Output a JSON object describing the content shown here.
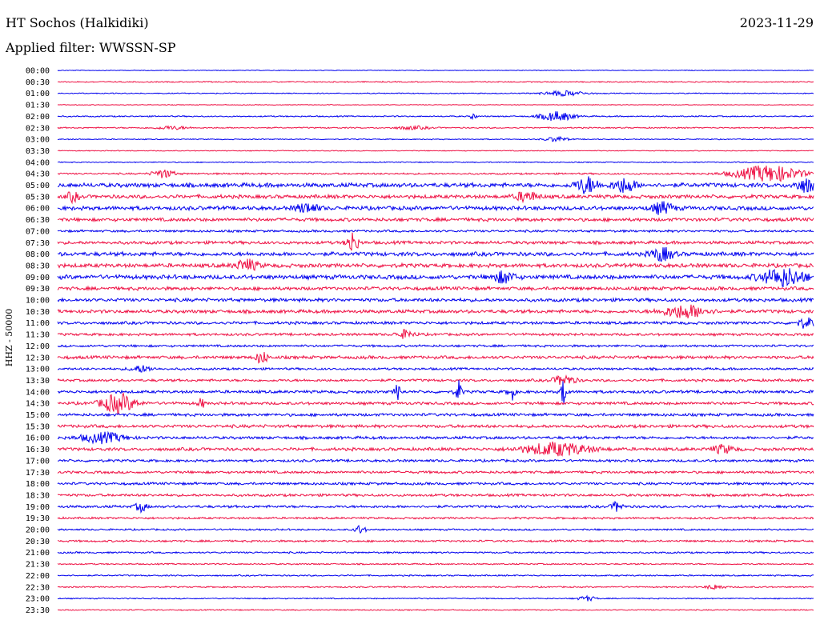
{
  "header": {
    "station": "HT Sochos (Halkidiki)",
    "date": "2023-11-29",
    "filter": "Applied filter: WWSSN-SP",
    "channel_label": "HHZ - 50000"
  },
  "colors": {
    "even_rows": "#0000ee",
    "odd_rows": "#ee1144"
  },
  "chart_data": {
    "type": "line",
    "title": "HT Sochos (Halkidiki)",
    "subtitle": "Applied filter: WWSSN-SP",
    "ylabel": "HHZ - 50000",
    "xlabel": "",
    "grid": false,
    "legend": "none",
    "categories": [
      "00:00",
      "00:30",
      "01:00",
      "01:30",
      "02:00",
      "02:30",
      "03:00",
      "03:30",
      "04:00",
      "04:30",
      "05:00",
      "05:30",
      "06:00",
      "06:30",
      "07:00",
      "07:30",
      "08:00",
      "08:30",
      "09:00",
      "09:30",
      "10:00",
      "10:30",
      "11:00",
      "11:30",
      "12:00",
      "12:30",
      "13:00",
      "13:30",
      "14:00",
      "14:30",
      "15:00",
      "15:30",
      "16:00",
      "16:30",
      "17:00",
      "17:30",
      "18:00",
      "18:30",
      "19:00",
      "19:30",
      "20:00",
      "20:30",
      "21:00",
      "21:30",
      "22:00",
      "22:30",
      "23:00",
      "23:30"
    ],
    "noise_level": [
      0.5,
      0.8,
      0.7,
      0.5,
      0.9,
      0.9,
      0.7,
      0.6,
      0.7,
      1.2,
      3.0,
      2.6,
      2.8,
      2.4,
      1.6,
      2.2,
      2.8,
      2.8,
      3.0,
      2.4,
      2.4,
      2.4,
      2.0,
      1.8,
      1.6,
      2.2,
      1.6,
      1.8,
      2.0,
      2.0,
      2.0,
      2.2,
      2.0,
      2.2,
      1.8,
      1.8,
      1.8,
      1.8,
      1.8,
      1.4,
      1.2,
      1.4,
      1.2,
      1.0,
      1.0,
      1.0,
      0.8,
      0.8
    ],
    "events": [
      {
        "row": 2,
        "x": 0.67,
        "amp": 3,
        "w": 0.02
      },
      {
        "row": 4,
        "x": 0.55,
        "amp": 8,
        "w": 0.002
      },
      {
        "row": 4,
        "x": 0.66,
        "amp": 6,
        "w": 0.015
      },
      {
        "row": 5,
        "x": 0.15,
        "amp": 2,
        "w": 0.015
      },
      {
        "row": 5,
        "x": 0.47,
        "amp": 2,
        "w": 0.015
      },
      {
        "row": 6,
        "x": 0.66,
        "amp": 3,
        "w": 0.01
      },
      {
        "row": 9,
        "x": 0.14,
        "amp": 5,
        "w": 0.01
      },
      {
        "row": 9,
        "x": 0.94,
        "amp": 10,
        "w": 0.03
      },
      {
        "row": 10,
        "x": 0.7,
        "amp": 10,
        "w": 0.01
      },
      {
        "row": 10,
        "x": 0.75,
        "amp": 9,
        "w": 0.01
      },
      {
        "row": 10,
        "x": 0.99,
        "amp": 8,
        "w": 0.01
      },
      {
        "row": 11,
        "x": 0.02,
        "amp": 6,
        "w": 0.005
      },
      {
        "row": 11,
        "x": 0.62,
        "amp": 6,
        "w": 0.01
      },
      {
        "row": 12,
        "x": 0.8,
        "amp": 7,
        "w": 0.01
      },
      {
        "row": 12,
        "x": 0.33,
        "amp": 6,
        "w": 0.01
      },
      {
        "row": 15,
        "x": 0.39,
        "amp": 14,
        "w": 0.005
      },
      {
        "row": 16,
        "x": 0.8,
        "amp": 8,
        "w": 0.01
      },
      {
        "row": 17,
        "x": 0.25,
        "amp": 7,
        "w": 0.01
      },
      {
        "row": 18,
        "x": 0.59,
        "amp": 7,
        "w": 0.01
      },
      {
        "row": 18,
        "x": 0.96,
        "amp": 11,
        "w": 0.02
      },
      {
        "row": 21,
        "x": 0.83,
        "amp": 8,
        "w": 0.02
      },
      {
        "row": 22,
        "x": 0.99,
        "amp": 6,
        "w": 0.008
      },
      {
        "row": 23,
        "x": 0.46,
        "amp": 5,
        "w": 0.008
      },
      {
        "row": 25,
        "x": 0.27,
        "amp": 8,
        "w": 0.005
      },
      {
        "row": 26,
        "x": 0.11,
        "amp": 4,
        "w": 0.01
      },
      {
        "row": 27,
        "x": 0.67,
        "amp": 6,
        "w": 0.01
      },
      {
        "row": 28,
        "x": 0.45,
        "amp": 10,
        "w": 0.003
      },
      {
        "row": 28,
        "x": 0.53,
        "amp": 14,
        "w": 0.003
      },
      {
        "row": 28,
        "x": 0.6,
        "amp": 12,
        "w": 0.003
      },
      {
        "row": 28,
        "x": 0.67,
        "amp": 16,
        "w": 0.003
      },
      {
        "row": 29,
        "x": 0.08,
        "amp": 12,
        "w": 0.015
      },
      {
        "row": 29,
        "x": 0.19,
        "amp": 6,
        "w": 0.003
      },
      {
        "row": 32,
        "x": 0.06,
        "amp": 6,
        "w": 0.02
      },
      {
        "row": 33,
        "x": 0.66,
        "amp": 8,
        "w": 0.03
      },
      {
        "row": 33,
        "x": 0.88,
        "amp": 5,
        "w": 0.01
      },
      {
        "row": 38,
        "x": 0.11,
        "amp": 6,
        "w": 0.005
      },
      {
        "row": 38,
        "x": 0.74,
        "amp": 6,
        "w": 0.005
      },
      {
        "row": 40,
        "x": 0.4,
        "amp": 5,
        "w": 0.005
      },
      {
        "row": 45,
        "x": 0.87,
        "amp": 3,
        "w": 0.008
      },
      {
        "row": 46,
        "x": 0.7,
        "amp": 3,
        "w": 0.008
      }
    ]
  }
}
